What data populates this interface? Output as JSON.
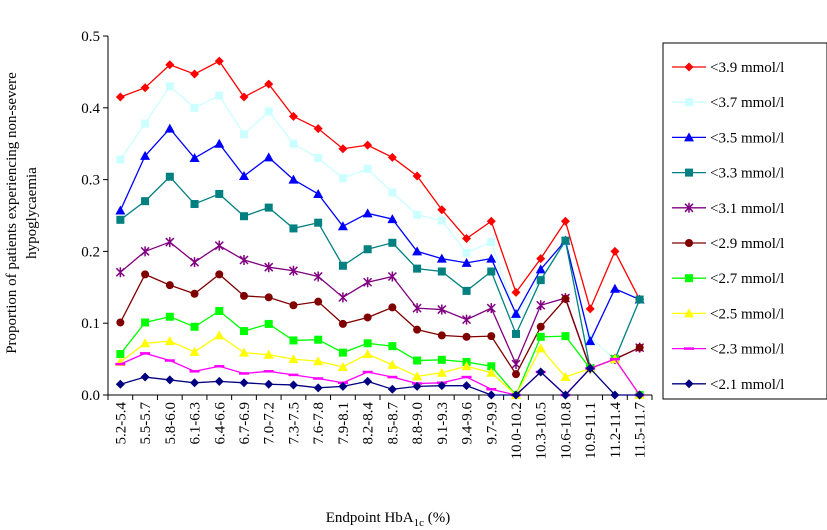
{
  "chart_data": {
    "type": "line",
    "xlabel_main": "Endpoint HbA",
    "xlabel_sub": "1c",
    "xlabel_tail": " (%)",
    "ylabel_line1": "Proportion of patients experiencing non-severe",
    "ylabel_line2": "hypoglycaemia",
    "ylim": [
      0,
      0.5
    ],
    "yticks": [
      "0.0",
      "0.1",
      "0.2",
      "0.3",
      "0.4",
      "0.5"
    ],
    "legend_position": "right",
    "grid": false,
    "categories": [
      "5.2-5.4",
      "5.5-5.7",
      "5.8-6.0",
      "6.1-6.3",
      "6.4-6.6",
      "6.7-6.9",
      "7.0-7.2",
      "7.3-7.5",
      "7.6-7.8",
      "7.9-8.1",
      "8.2-8.4",
      "8.5-8.7",
      "8.8-9.0",
      "9.1-9.3",
      "9.4-9.6",
      "9.7-9.9",
      "10.0-10.2",
      "10.3-10.5",
      "10.6-10.8",
      "10.9-11.1",
      "11.2-11.4",
      "11.5-11.7"
    ],
    "series": [
      {
        "name": "<3.9 mmol/l",
        "color": "#ff0000",
        "marker": "diamond",
        "values": [
          0.415,
          0.428,
          0.46,
          0.447,
          0.465,
          0.415,
          0.433,
          0.388,
          0.371,
          0.343,
          0.348,
          0.331,
          0.305,
          0.258,
          0.218,
          0.242,
          0.143,
          0.19,
          0.242,
          0.12,
          0.2,
          0.133
        ]
      },
      {
        "name": "<3.7 mmol/l",
        "color": "#ccffff",
        "marker": "square",
        "values": [
          0.328,
          0.378,
          0.43,
          0.4,
          0.417,
          0.363,
          0.395,
          0.35,
          0.33,
          0.302,
          0.315,
          0.282,
          0.251,
          0.243,
          0.198,
          0.213,
          0.11,
          0.162,
          0.212,
          0.08,
          0.05,
          0.133
        ]
      },
      {
        "name": "<3.5 mmol/l",
        "color": "#0000ff",
        "marker": "triangle",
        "values": [
          0.257,
          0.333,
          0.371,
          0.33,
          0.35,
          0.305,
          0.331,
          0.3,
          0.28,
          0.235,
          0.253,
          0.245,
          0.2,
          0.19,
          0.184,
          0.19,
          0.113,
          0.175,
          0.215,
          0.075,
          0.148,
          0.133
        ]
      },
      {
        "name": "<3.3 mmol/l",
        "color": "#008080",
        "marker": "square",
        "values": [
          0.244,
          0.27,
          0.304,
          0.266,
          0.28,
          0.249,
          0.261,
          0.232,
          0.24,
          0.18,
          0.203,
          0.212,
          0.176,
          0.172,
          0.145,
          0.172,
          0.085,
          0.16,
          0.215,
          0.037,
          0.05,
          0.133
        ]
      },
      {
        "name": "<3.1 mmol/l",
        "color": "#800080",
        "marker": "star",
        "values": [
          0.171,
          0.2,
          0.213,
          0.185,
          0.208,
          0.188,
          0.178,
          0.173,
          0.165,
          0.136,
          0.157,
          0.165,
          0.121,
          0.119,
          0.105,
          0.121,
          0.043,
          0.125,
          0.135,
          0.037,
          0.05,
          0.066
        ]
      },
      {
        "name": "<2.9 mmol/l",
        "color": "#800000",
        "marker": "circle",
        "values": [
          0.101,
          0.168,
          0.153,
          0.141,
          0.168,
          0.138,
          0.136,
          0.125,
          0.13,
          0.099,
          0.108,
          0.122,
          0.091,
          0.083,
          0.081,
          0.082,
          0.029,
          0.095,
          0.134,
          0.037,
          0.05,
          0.066
        ]
      },
      {
        "name": "<2.7 mmol/l",
        "color": "#00ff00",
        "marker": "square",
        "values": [
          0.057,
          0.101,
          0.109,
          0.095,
          0.117,
          0.089,
          0.099,
          0.076,
          0.077,
          0.059,
          0.072,
          0.068,
          0.048,
          0.049,
          0.046,
          0.04,
          0.0,
          0.081,
          0.082,
          0.037,
          0.05,
          0.0
        ]
      },
      {
        "name": "<2.5 mmol/l",
        "color": "#ffff00",
        "marker": "triangle",
        "values": [
          0.046,
          0.072,
          0.075,
          0.06,
          0.083,
          0.059,
          0.056,
          0.05,
          0.047,
          0.039,
          0.057,
          0.042,
          0.026,
          0.031,
          0.04,
          0.031,
          0.0,
          0.065,
          0.025,
          0.037,
          0.05,
          0.0
        ]
      },
      {
        "name": "<2.3 mmol/l",
        "color": "#ff00ff",
        "marker": "dash",
        "values": [
          0.043,
          0.058,
          0.048,
          0.033,
          0.04,
          0.03,
          0.033,
          0.028,
          0.023,
          0.017,
          0.032,
          0.025,
          0.016,
          0.017,
          0.025,
          0.008,
          0.0,
          0.032,
          0.0,
          0.037,
          0.05,
          0.0
        ]
      },
      {
        "name": "<2.1 mmol/l",
        "color": "#000080",
        "marker": "diamond",
        "values": [
          0.015,
          0.025,
          0.021,
          0.017,
          0.019,
          0.017,
          0.015,
          0.014,
          0.01,
          0.012,
          0.019,
          0.008,
          0.012,
          0.013,
          0.013,
          0.0,
          0.0,
          0.032,
          0.0,
          0.037,
          0.0,
          0.0
        ]
      }
    ]
  }
}
